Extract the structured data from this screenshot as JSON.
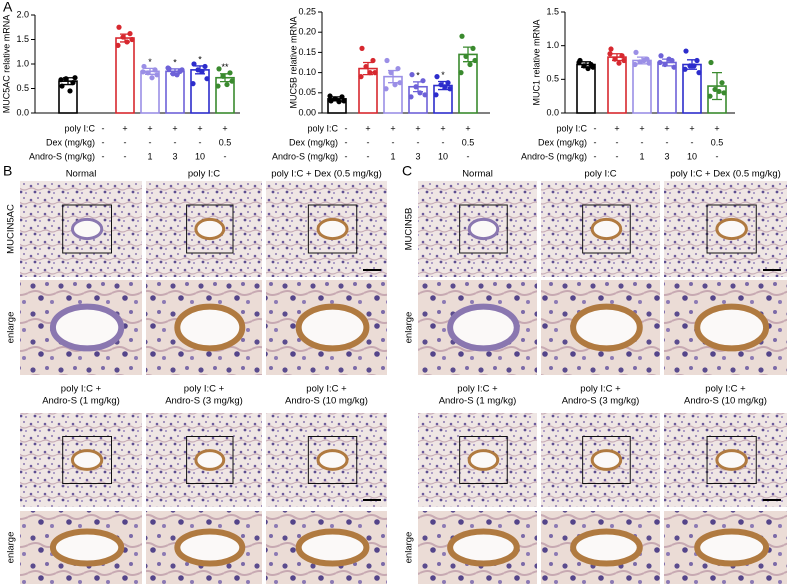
{
  "panel_a_label": "A",
  "chart_data": [
    {
      "type": "bar",
      "y_label": "MUC5AC relative mRNA",
      "ylim": [
        0,
        2.0
      ],
      "yticks": [
        {
          "value": 0,
          "label": "0.0"
        },
        {
          "value": 0.5,
          "label": "0.5"
        },
        {
          "value": 1.0,
          "label": "1.0"
        },
        {
          "value": 1.5,
          "label": "1.5"
        },
        {
          "value": 2.0,
          "label": "2.0"
        }
      ],
      "values": [
        0.65,
        1.53,
        0.85,
        0.85,
        0.88,
        0.72
      ],
      "errors": [
        0.07,
        0.08,
        0.06,
        0.05,
        0.08,
        0.08
      ],
      "colors": [
        "#000000",
        "#d7282f",
        "#9b8fe6",
        "#6e62d8",
        "#2d2dcc",
        "#3a8a2e"
      ],
      "significance": [
        null,
        null,
        "*",
        "*",
        "*",
        "**"
      ],
      "points": [
        [
          0.55,
          0.62,
          0.7,
          0.72,
          0.68,
          0.45
        ],
        [
          1.75,
          1.62,
          1.55,
          1.5,
          1.38,
          1.45
        ],
        [
          0.95,
          0.88,
          0.82,
          0.78,
          0.84,
          0.72
        ],
        [
          0.9,
          0.85,
          0.8,
          0.88,
          0.92,
          0.78
        ],
        [
          1.0,
          0.95,
          0.88,
          0.7,
          0.6,
          0.85
        ],
        [
          0.9,
          0.82,
          0.75,
          0.65,
          0.55,
          0.58
        ]
      ]
    },
    {
      "type": "bar",
      "y_label": "MUC5B relative mRNA",
      "ylim": [
        0,
        0.25
      ],
      "yticks": [
        {
          "value": 0,
          "label": "0.00"
        },
        0.05,
        {
          "value": 0.1,
          "label": "0.10"
        },
        0.15,
        {
          "value": 0.2,
          "label": "0.20"
        },
        0.25
      ],
      "values": [
        0.035,
        0.11,
        0.09,
        0.065,
        0.068,
        0.145
      ],
      "errors": [
        0.005,
        0.015,
        0.015,
        0.012,
        0.01,
        0.018
      ],
      "colors": [
        "#000000",
        "#d7282f",
        "#9b8fe6",
        "#6e62d8",
        "#2d2dcc",
        "#3a8a2e"
      ],
      "significance": [
        null,
        null,
        null,
        "*",
        "*",
        null
      ],
      "points": [
        [
          0.03,
          0.04,
          0.035,
          0.03,
          0.042,
          0.028
        ],
        [
          0.16,
          0.13,
          0.115,
          0.1,
          0.09,
          0.1
        ],
        [
          0.13,
          0.11,
          0.1,
          0.075,
          0.06,
          0.07
        ],
        [
          0.095,
          0.08,
          0.065,
          0.045,
          0.04,
          0.05
        ],
        [
          0.09,
          0.075,
          0.07,
          0.06,
          0.045,
          0.065
        ],
        [
          0.19,
          0.16,
          0.14,
          0.13,
          0.1,
          0.12
        ]
      ]
    },
    {
      "type": "bar",
      "y_label": "MUC1 relative mRNA",
      "ylim": [
        0,
        1.5
      ],
      "yticks": [
        {
          "value": 0,
          "label": "0.0"
        },
        {
          "value": 0.5,
          "label": "0.5"
        },
        {
          "value": 1.0,
          "label": "1.0"
        },
        {
          "value": 1.5,
          "label": "1.5"
        }
      ],
      "values": [
        0.72,
        0.83,
        0.78,
        0.75,
        0.72,
        0.4
      ],
      "errors": [
        0.04,
        0.05,
        0.05,
        0.05,
        0.07,
        0.2
      ],
      "colors": [
        "#000000",
        "#d7282f",
        "#9b8fe6",
        "#6e62d8",
        "#2d2dcc",
        "#3a8a2e"
      ],
      "significance": [
        null,
        null,
        null,
        null,
        null,
        null
      ],
      "points": [
        [
          0.78,
          0.72,
          0.7,
          0.68,
          0.75,
          0.66
        ],
        [
          0.95,
          0.85,
          0.8,
          0.78,
          0.88,
          0.74
        ],
        [
          0.9,
          0.8,
          0.76,
          0.74,
          0.72,
          0.78
        ],
        [
          0.85,
          0.78,
          0.72,
          0.68,
          0.75,
          0.8
        ],
        [
          0.92,
          0.78,
          0.7,
          0.6,
          0.65,
          0.7
        ],
        [
          0.75,
          0.45,
          0.35,
          0.3,
          0.25,
          0.32
        ]
      ]
    }
  ],
  "treatment_table": {
    "rows": [
      {
        "label": "poly I:C",
        "cells": [
          "-",
          "+",
          "+",
          "+",
          "+",
          "+"
        ]
      },
      {
        "label": "Dex (mg/kg)",
        "cells": [
          "-",
          "-",
          "-",
          "-",
          "-",
          "0.5"
        ]
      },
      {
        "label": "Andro-S (mg/kg)",
        "cells": [
          "-",
          "-",
          "1",
          "3",
          "10",
          "-"
        ]
      }
    ]
  },
  "histology": [
    {
      "label": "B",
      "stain": "MUCIN5AC",
      "enlarge_label": "enlarge",
      "top_captions": [
        "Normal",
        "poly I:C",
        "poly I:C + Dex (0.5 mg/kg)"
      ],
      "bottom_captions": [
        [
          "poly I:C +",
          "Andro-S (1 mg/kg)"
        ],
        [
          "poly I:C +",
          "Andro-S (3 mg/kg)"
        ],
        [
          "poly I:C +",
          "Andro-S (10 mg/kg)"
        ]
      ]
    },
    {
      "label": "C",
      "stain": "MUCIN5B",
      "enlarge_label": "enlarge",
      "top_captions": [
        "Normal",
        "poly I:C",
        "poly I:C + Dex (0.5 mg/kg)"
      ],
      "bottom_captions": [
        [
          "poly I:C +",
          "Andro-S (1 mg/kg)"
        ],
        [
          "poly I:C +",
          "Andro-S (3 mg/kg)"
        ],
        [
          "poly I:C +",
          "Andro-S (10 mg/kg)"
        ]
      ]
    }
  ]
}
